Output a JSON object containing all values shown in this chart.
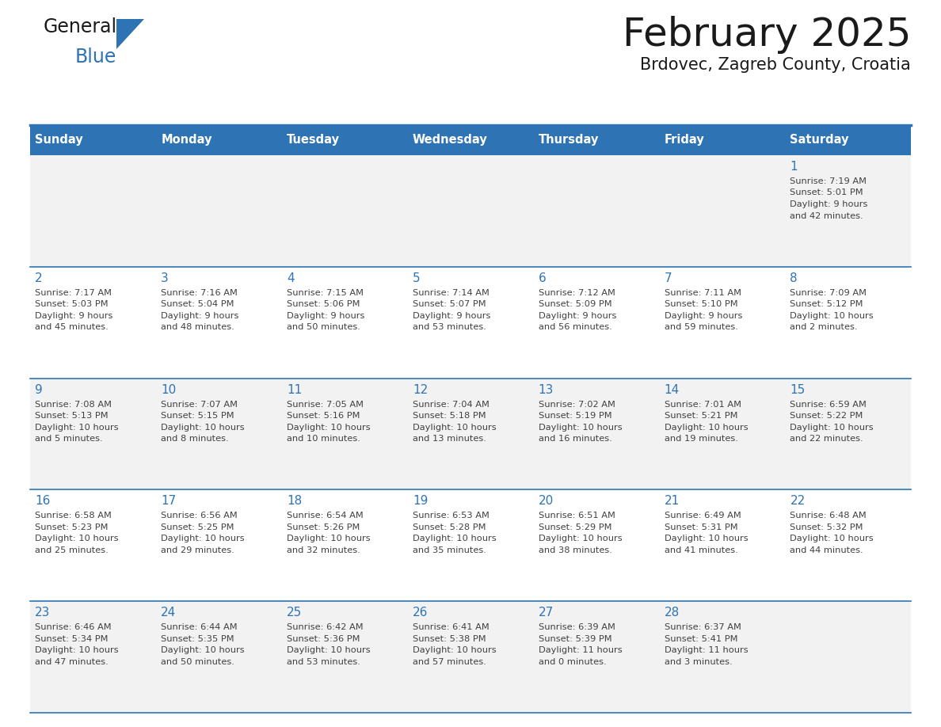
{
  "title": "February 2025",
  "subtitle": "Brdovec, Zagreb County, Croatia",
  "days_of_week": [
    "Sunday",
    "Monday",
    "Tuesday",
    "Wednesday",
    "Thursday",
    "Friday",
    "Saturday"
  ],
  "header_bg": "#2E74B5",
  "header_text_color": "#FFFFFF",
  "cell_bg_odd": "#F2F2F2",
  "cell_bg_even": "#FFFFFF",
  "border_color": "#2E74B5",
  "text_color": "#404040",
  "title_color": "#1a1a1a",
  "day_num_color": "#2E74B5",
  "logo_general_color": "#1a1a1a",
  "logo_blue_color": "#2E74B5",
  "logo_triangle_color": "#2E74B5",
  "calendar_data": [
    [
      null,
      null,
      null,
      null,
      null,
      null,
      {
        "day": 1,
        "sunrise": "7:19 AM",
        "sunset": "5:01 PM",
        "daylight": "9 hours\nand 42 minutes."
      }
    ],
    [
      {
        "day": 2,
        "sunrise": "7:17 AM",
        "sunset": "5:03 PM",
        "daylight": "9 hours\nand 45 minutes."
      },
      {
        "day": 3,
        "sunrise": "7:16 AM",
        "sunset": "5:04 PM",
        "daylight": "9 hours\nand 48 minutes."
      },
      {
        "day": 4,
        "sunrise": "7:15 AM",
        "sunset": "5:06 PM",
        "daylight": "9 hours\nand 50 minutes."
      },
      {
        "day": 5,
        "sunrise": "7:14 AM",
        "sunset": "5:07 PM",
        "daylight": "9 hours\nand 53 minutes."
      },
      {
        "day": 6,
        "sunrise": "7:12 AM",
        "sunset": "5:09 PM",
        "daylight": "9 hours\nand 56 minutes."
      },
      {
        "day": 7,
        "sunrise": "7:11 AM",
        "sunset": "5:10 PM",
        "daylight": "9 hours\nand 59 minutes."
      },
      {
        "day": 8,
        "sunrise": "7:09 AM",
        "sunset": "5:12 PM",
        "daylight": "10 hours\nand 2 minutes."
      }
    ],
    [
      {
        "day": 9,
        "sunrise": "7:08 AM",
        "sunset": "5:13 PM",
        "daylight": "10 hours\nand 5 minutes."
      },
      {
        "day": 10,
        "sunrise": "7:07 AM",
        "sunset": "5:15 PM",
        "daylight": "10 hours\nand 8 minutes."
      },
      {
        "day": 11,
        "sunrise": "7:05 AM",
        "sunset": "5:16 PM",
        "daylight": "10 hours\nand 10 minutes."
      },
      {
        "day": 12,
        "sunrise": "7:04 AM",
        "sunset": "5:18 PM",
        "daylight": "10 hours\nand 13 minutes."
      },
      {
        "day": 13,
        "sunrise": "7:02 AM",
        "sunset": "5:19 PM",
        "daylight": "10 hours\nand 16 minutes."
      },
      {
        "day": 14,
        "sunrise": "7:01 AM",
        "sunset": "5:21 PM",
        "daylight": "10 hours\nand 19 minutes."
      },
      {
        "day": 15,
        "sunrise": "6:59 AM",
        "sunset": "5:22 PM",
        "daylight": "10 hours\nand 22 minutes."
      }
    ],
    [
      {
        "day": 16,
        "sunrise": "6:58 AM",
        "sunset": "5:23 PM",
        "daylight": "10 hours\nand 25 minutes."
      },
      {
        "day": 17,
        "sunrise": "6:56 AM",
        "sunset": "5:25 PM",
        "daylight": "10 hours\nand 29 minutes."
      },
      {
        "day": 18,
        "sunrise": "6:54 AM",
        "sunset": "5:26 PM",
        "daylight": "10 hours\nand 32 minutes."
      },
      {
        "day": 19,
        "sunrise": "6:53 AM",
        "sunset": "5:28 PM",
        "daylight": "10 hours\nand 35 minutes."
      },
      {
        "day": 20,
        "sunrise": "6:51 AM",
        "sunset": "5:29 PM",
        "daylight": "10 hours\nand 38 minutes."
      },
      {
        "day": 21,
        "sunrise": "6:49 AM",
        "sunset": "5:31 PM",
        "daylight": "10 hours\nand 41 minutes."
      },
      {
        "day": 22,
        "sunrise": "6:48 AM",
        "sunset": "5:32 PM",
        "daylight": "10 hours\nand 44 minutes."
      }
    ],
    [
      {
        "day": 23,
        "sunrise": "6:46 AM",
        "sunset": "5:34 PM",
        "daylight": "10 hours\nand 47 minutes."
      },
      {
        "day": 24,
        "sunrise": "6:44 AM",
        "sunset": "5:35 PM",
        "daylight": "10 hours\nand 50 minutes."
      },
      {
        "day": 25,
        "sunrise": "6:42 AM",
        "sunset": "5:36 PM",
        "daylight": "10 hours\nand 53 minutes."
      },
      {
        "day": 26,
        "sunrise": "6:41 AM",
        "sunset": "5:38 PM",
        "daylight": "10 hours\nand 57 minutes."
      },
      {
        "day": 27,
        "sunrise": "6:39 AM",
        "sunset": "5:39 PM",
        "daylight": "11 hours\nand 0 minutes."
      },
      {
        "day": 28,
        "sunrise": "6:37 AM",
        "sunset": "5:41 PM",
        "daylight": "11 hours\nand 3 minutes."
      },
      null
    ]
  ]
}
